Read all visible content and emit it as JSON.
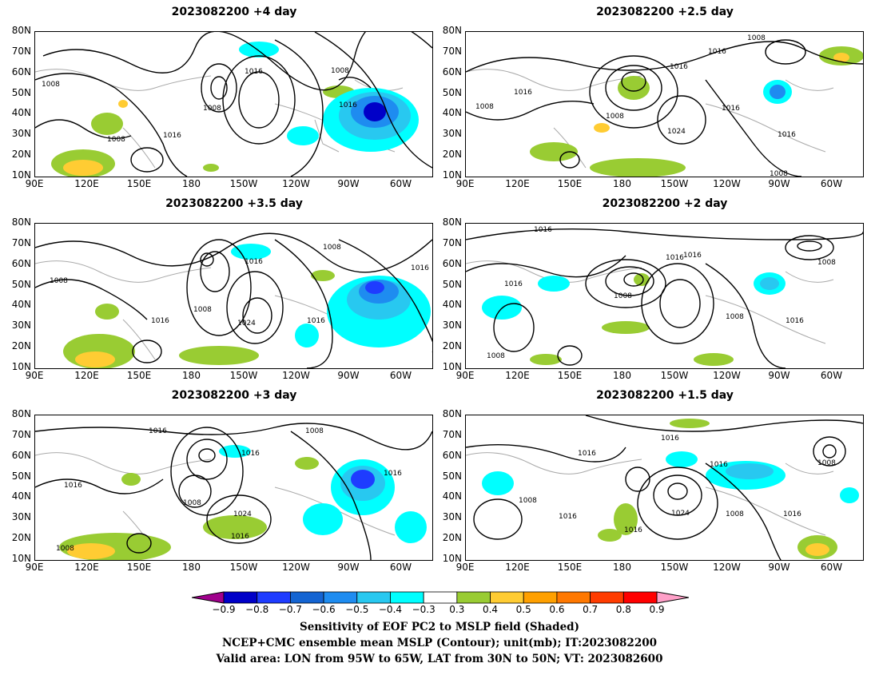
{
  "panels": [
    {
      "title": "2023082200  +4 day",
      "contour_labels": [
        "1008",
        "1008",
        "1016",
        "1016",
        "1008",
        "1016",
        "1008"
      ]
    },
    {
      "title": "2023082200  +2.5 day",
      "contour_labels": [
        "1008",
        "1016",
        "1016",
        "1016",
        "1008",
        "1016",
        "1024",
        "1016",
        "1008",
        "1008"
      ]
    },
    {
      "title": "2023082200  +3.5 day",
      "contour_labels": [
        "1008",
        "1016",
        "1008",
        "1008",
        "1016",
        "1024",
        "1016",
        "1016"
      ]
    },
    {
      "title": "2023082200  +2 day",
      "contour_labels": [
        "1016",
        "1016",
        "1016",
        "1008",
        "1016",
        "1008",
        "1008",
        "1016",
        "1008"
      ]
    },
    {
      "title": "2023082200  +3 day",
      "contour_labels": [
        "1016",
        "1016",
        "1016",
        "1008",
        "1008",
        "1016",
        "1024",
        "1016",
        "1008"
      ]
    },
    {
      "title": "2023082200  +1.5 day",
      "contour_labels": [
        "1016",
        "1016",
        "1016",
        "1016",
        "1008",
        "1008",
        "1024",
        "1016",
        "1008",
        "1016"
      ]
    }
  ],
  "axes": {
    "lat_ticks": [
      "80N",
      "70N",
      "60N",
      "50N",
      "40N",
      "30N",
      "20N",
      "10N"
    ],
    "lon_ticks": [
      "90E",
      "120E",
      "150E",
      "180",
      "150W",
      "120W",
      "90W",
      "60W"
    ]
  },
  "colorbar": {
    "labels": [
      "−0.9",
      "−0.8",
      "−0.7",
      "−0.6",
      "−0.5",
      "−0.4",
      "−0.3",
      "0.3",
      "0.4",
      "0.5",
      "0.6",
      "0.7",
      "0.8",
      "0.9"
    ],
    "colors": [
      "#a0008c",
      "#0000c8",
      "#1e3cff",
      "#1464d2",
      "#1e8cf0",
      "#28c8f0",
      "#00ffff",
      "#ffffff",
      "#99cc33",
      "#ffcc33",
      "#ffa000",
      "#ff7800",
      "#ff3c00",
      "#ff0000",
      "#ffa0c8"
    ]
  },
  "caption": {
    "line1": "Sensitivity of EOF PC2 to MSLP field (Shaded)",
    "line2": "NCEP+CMC ensemble mean MSLP (Contour); unit(mb); IT:2023082200",
    "line3": "Valid area: LON from 95W to 65W, LAT from 30N to 50N; VT: 2023082600"
  }
}
